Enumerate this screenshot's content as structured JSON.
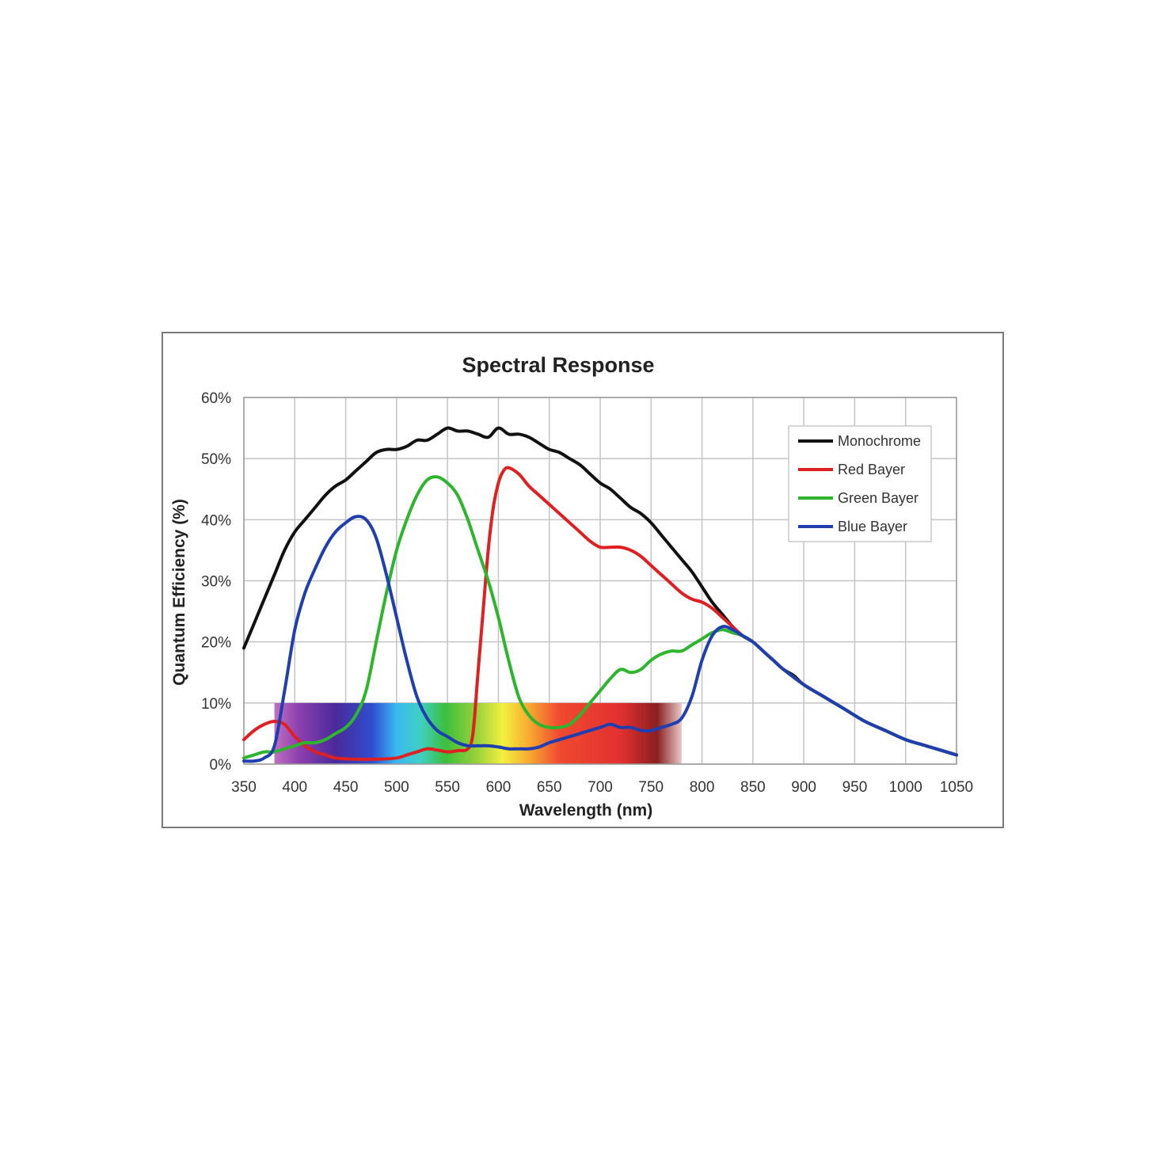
{
  "chart_data": {
    "type": "line",
    "title": "Spectral Response",
    "xlabel": "Wavelength (nm)",
    "ylabel": "Quantum Efficiency (%)",
    "xlim": [
      350,
      1050
    ],
    "ylim": [
      0,
      60
    ],
    "x_ticks": [
      350,
      400,
      450,
      500,
      550,
      600,
      650,
      700,
      750,
      800,
      850,
      900,
      950,
      1000,
      1050
    ],
    "y_ticks": [
      0,
      10,
      20,
      30,
      40,
      50,
      60
    ],
    "y_tick_labels": [
      "0%",
      "10%",
      "20%",
      "30%",
      "40%",
      "50%",
      "60%"
    ],
    "grid": true,
    "legend_position": "top-right",
    "visible_spectrum_band": {
      "x_range": [
        380,
        780
      ],
      "y_range": [
        0,
        10
      ]
    },
    "series": [
      {
        "name": "Monochrome",
        "color": "#111111",
        "points": [
          [
            350,
            19
          ],
          [
            360,
            23
          ],
          [
            370,
            27
          ],
          [
            380,
            31
          ],
          [
            390,
            35
          ],
          [
            400,
            38
          ],
          [
            410,
            40
          ],
          [
            420,
            42
          ],
          [
            430,
            44
          ],
          [
            440,
            45.5
          ],
          [
            450,
            46.5
          ],
          [
            460,
            48
          ],
          [
            470,
            49.5
          ],
          [
            480,
            51
          ],
          [
            490,
            51.5
          ],
          [
            500,
            51.5
          ],
          [
            510,
            52
          ],
          [
            520,
            53
          ],
          [
            530,
            53
          ],
          [
            540,
            54
          ],
          [
            550,
            55
          ],
          [
            560,
            54.5
          ],
          [
            570,
            54.5
          ],
          [
            580,
            54
          ],
          [
            590,
            53.5
          ],
          [
            600,
            55
          ],
          [
            610,
            54
          ],
          [
            620,
            54
          ],
          [
            630,
            53.5
          ],
          [
            640,
            52.5
          ],
          [
            650,
            51.5
          ],
          [
            660,
            51
          ],
          [
            670,
            50
          ],
          [
            680,
            49
          ],
          [
            690,
            47.5
          ],
          [
            700,
            46
          ],
          [
            710,
            45
          ],
          [
            720,
            43.5
          ],
          [
            730,
            42
          ],
          [
            740,
            41
          ],
          [
            750,
            39.5
          ],
          [
            760,
            37.5
          ],
          [
            770,
            35.5
          ],
          [
            780,
            33.5
          ],
          [
            790,
            31.5
          ],
          [
            800,
            29
          ],
          [
            810,
            26.5
          ],
          [
            820,
            24.5
          ],
          [
            830,
            22.5
          ],
          [
            840,
            21
          ],
          [
            850,
            20
          ],
          [
            860,
            18.5
          ],
          [
            870,
            17
          ],
          [
            880,
            15.5
          ],
          [
            890,
            14.5
          ],
          [
            900,
            13
          ],
          [
            920,
            11
          ],
          [
            940,
            9
          ],
          [
            960,
            7
          ],
          [
            980,
            5.5
          ],
          [
            1000,
            4
          ],
          [
            1020,
            3
          ],
          [
            1040,
            2
          ],
          [
            1050,
            1.5
          ]
        ]
      },
      {
        "name": "Red Bayer",
        "color": "#e02020",
        "points": [
          [
            350,
            4
          ],
          [
            360,
            5.5
          ],
          [
            370,
            6.5
          ],
          [
            380,
            7
          ],
          [
            390,
            6.5
          ],
          [
            400,
            4.5
          ],
          [
            410,
            3
          ],
          [
            420,
            2
          ],
          [
            430,
            1.5
          ],
          [
            440,
            1
          ],
          [
            460,
            0.8
          ],
          [
            480,
            0.8
          ],
          [
            500,
            1
          ],
          [
            510,
            1.5
          ],
          [
            520,
            2
          ],
          [
            530,
            2.5
          ],
          [
            540,
            2.3
          ],
          [
            550,
            2
          ],
          [
            560,
            2.2
          ],
          [
            570,
            2.5
          ],
          [
            575,
            5
          ],
          [
            580,
            15
          ],
          [
            585,
            25
          ],
          [
            590,
            35
          ],
          [
            595,
            42
          ],
          [
            600,
            46
          ],
          [
            605,
            48
          ],
          [
            610,
            48.5
          ],
          [
            620,
            47.5
          ],
          [
            630,
            45.5
          ],
          [
            640,
            44
          ],
          [
            650,
            42.5
          ],
          [
            660,
            41
          ],
          [
            670,
            39.5
          ],
          [
            680,
            38
          ],
          [
            690,
            36.5
          ],
          [
            700,
            35.5
          ],
          [
            710,
            35.5
          ],
          [
            720,
            35.5
          ],
          [
            730,
            35
          ],
          [
            740,
            34
          ],
          [
            750,
            32.5
          ],
          [
            760,
            31
          ],
          [
            770,
            29.5
          ],
          [
            780,
            28
          ],
          [
            790,
            27
          ],
          [
            800,
            26.5
          ],
          [
            810,
            25.5
          ],
          [
            820,
            24
          ],
          [
            830,
            22.5
          ],
          [
            840,
            21
          ],
          [
            850,
            20
          ],
          [
            860,
            18.5
          ],
          [
            870,
            17
          ],
          [
            880,
            15.5
          ],
          [
            900,
            13
          ],
          [
            920,
            11
          ],
          [
            940,
            9
          ],
          [
            960,
            7
          ],
          [
            980,
            5.5
          ],
          [
            1000,
            4
          ],
          [
            1020,
            3
          ],
          [
            1040,
            2
          ],
          [
            1050,
            1.5
          ]
        ]
      },
      {
        "name": "Green Bayer",
        "color": "#2db52d",
        "points": [
          [
            350,
            1
          ],
          [
            360,
            1.5
          ],
          [
            370,
            2
          ],
          [
            380,
            2
          ],
          [
            390,
            2.5
          ],
          [
            400,
            3
          ],
          [
            410,
            3.5
          ],
          [
            420,
            3.5
          ],
          [
            430,
            4
          ],
          [
            440,
            5
          ],
          [
            450,
            6
          ],
          [
            460,
            8
          ],
          [
            470,
            12
          ],
          [
            480,
            20
          ],
          [
            490,
            28
          ],
          [
            500,
            35
          ],
          [
            510,
            40
          ],
          [
            520,
            44
          ],
          [
            530,
            46.5
          ],
          [
            540,
            47
          ],
          [
            550,
            46
          ],
          [
            560,
            44
          ],
          [
            570,
            40
          ],
          [
            580,
            35
          ],
          [
            590,
            30
          ],
          [
            600,
            24
          ],
          [
            610,
            17
          ],
          [
            620,
            11
          ],
          [
            630,
            8
          ],
          [
            640,
            6.5
          ],
          [
            650,
            6
          ],
          [
            660,
            6
          ],
          [
            670,
            6.5
          ],
          [
            680,
            8
          ],
          [
            690,
            10
          ],
          [
            700,
            12
          ],
          [
            710,
            14
          ],
          [
            720,
            15.5
          ],
          [
            730,
            15
          ],
          [
            740,
            15.5
          ],
          [
            750,
            17
          ],
          [
            760,
            18
          ],
          [
            770,
            18.5
          ],
          [
            780,
            18.5
          ],
          [
            790,
            19.5
          ],
          [
            800,
            20.5
          ],
          [
            810,
            21.5
          ],
          [
            820,
            22
          ],
          [
            830,
            21.5
          ],
          [
            840,
            21
          ],
          [
            850,
            20
          ],
          [
            860,
            18.5
          ],
          [
            870,
            17
          ],
          [
            880,
            15.5
          ],
          [
            900,
            13
          ],
          [
            920,
            11
          ],
          [
            940,
            9
          ],
          [
            960,
            7
          ],
          [
            980,
            5.5
          ],
          [
            1000,
            4
          ],
          [
            1020,
            3
          ],
          [
            1040,
            2
          ],
          [
            1050,
            1.5
          ]
        ]
      },
      {
        "name": "Blue Bayer",
        "color": "#1f3fb0",
        "points": [
          [
            350,
            0.5
          ],
          [
            360,
            0.5
          ],
          [
            370,
            1
          ],
          [
            380,
            3
          ],
          [
            390,
            12
          ],
          [
            400,
            22
          ],
          [
            410,
            28
          ],
          [
            420,
            32
          ],
          [
            430,
            35.5
          ],
          [
            440,
            38
          ],
          [
            450,
            39.5
          ],
          [
            460,
            40.5
          ],
          [
            470,
            40
          ],
          [
            480,
            37
          ],
          [
            490,
            31
          ],
          [
            500,
            24
          ],
          [
            510,
            17
          ],
          [
            520,
            11
          ],
          [
            530,
            7.5
          ],
          [
            540,
            5.5
          ],
          [
            550,
            4.5
          ],
          [
            560,
            3.5
          ],
          [
            570,
            3
          ],
          [
            580,
            3
          ],
          [
            590,
            3
          ],
          [
            600,
            2.8
          ],
          [
            610,
            2.5
          ],
          [
            620,
            2.5
          ],
          [
            630,
            2.5
          ],
          [
            640,
            2.8
          ],
          [
            650,
            3.5
          ],
          [
            660,
            4
          ],
          [
            670,
            4.5
          ],
          [
            680,
            5
          ],
          [
            690,
            5.5
          ],
          [
            700,
            6
          ],
          [
            710,
            6.5
          ],
          [
            720,
            6
          ],
          [
            730,
            6
          ],
          [
            740,
            5.5
          ],
          [
            750,
            5.5
          ],
          [
            760,
            6
          ],
          [
            770,
            6.5
          ],
          [
            780,
            7.5
          ],
          [
            790,
            11
          ],
          [
            800,
            17
          ],
          [
            810,
            21
          ],
          [
            820,
            22.5
          ],
          [
            830,
            22
          ],
          [
            840,
            21
          ],
          [
            850,
            20
          ],
          [
            860,
            18.5
          ],
          [
            870,
            17
          ],
          [
            880,
            15.5
          ],
          [
            900,
            13
          ],
          [
            920,
            11
          ],
          [
            940,
            9
          ],
          [
            960,
            7
          ],
          [
            980,
            5.5
          ],
          [
            1000,
            4
          ],
          [
            1020,
            3
          ],
          [
            1040,
            2
          ],
          [
            1050,
            1.5
          ]
        ]
      }
    ]
  }
}
